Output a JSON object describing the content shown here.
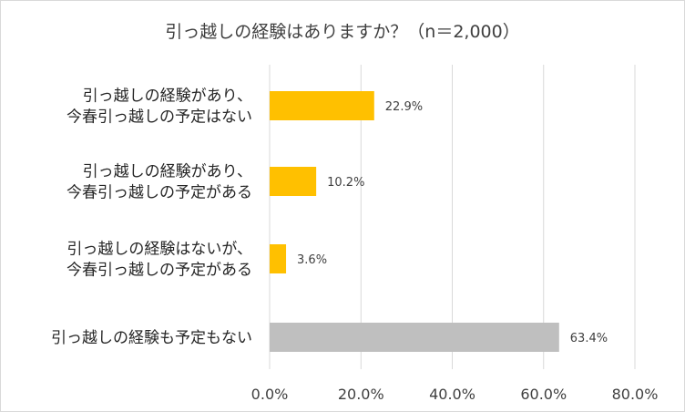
{
  "chart_data": {
    "type": "bar",
    "orientation": "horizontal",
    "title": "引っ越しの経験はありますか？（n＝2,000）",
    "categories": [
      [
        "引っ越しの経験があり、",
        "今春引っ越しの予定はない"
      ],
      [
        "引っ越しの経験があり、",
        "今春引っ越しの予定がある"
      ],
      [
        "引っ越しの経験はないが、",
        "今春引っ越しの予定がある"
      ],
      [
        "引っ越しの経験も予定もない"
      ]
    ],
    "values": [
      22.9,
      10.2,
      3.6,
      63.4
    ],
    "data_labels": [
      "22.9%",
      "10.2%",
      "3.6%",
      "63.4%"
    ],
    "bar_colors": [
      "#ffc000",
      "#ffc000",
      "#ffc000",
      "#bfbfbf"
    ],
    "xlim": [
      0,
      80
    ],
    "xticks": [
      0,
      20,
      40,
      60,
      80
    ],
    "xtick_labels": [
      "0.0%",
      "20.0%",
      "40.0%",
      "60.0%",
      "80.0%"
    ],
    "grid": "vertical",
    "gridline_color": "#d9d9d9",
    "legend": "none"
  }
}
